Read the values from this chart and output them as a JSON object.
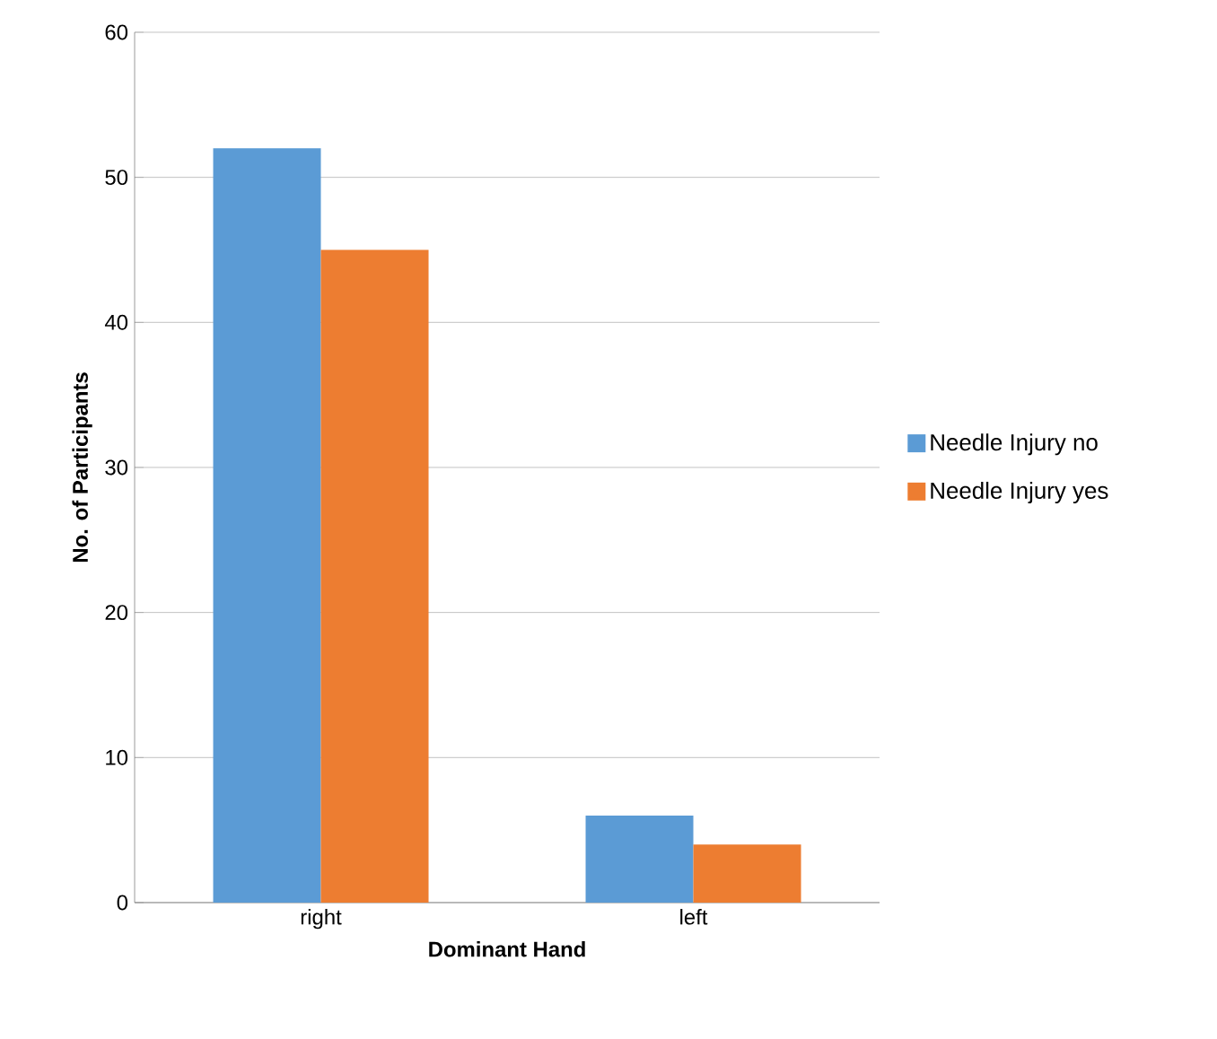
{
  "chart_data": {
    "type": "bar",
    "xlabel": "Dominant Hand",
    "ylabel": "No. of  Participants",
    "categories": [
      "right",
      "left"
    ],
    "series": [
      {
        "name": "Needle Injury no",
        "color": "#5b9bd5",
        "values": [
          52,
          6
        ]
      },
      {
        "name": "Needle Injury yes",
        "color": "#ed7d31",
        "values": [
          45,
          4
        ]
      }
    ],
    "ylim": [
      0,
      60
    ],
    "yticks": [
      0,
      10,
      20,
      30,
      40,
      50,
      60
    ],
    "grid": "y",
    "legend": "right"
  }
}
